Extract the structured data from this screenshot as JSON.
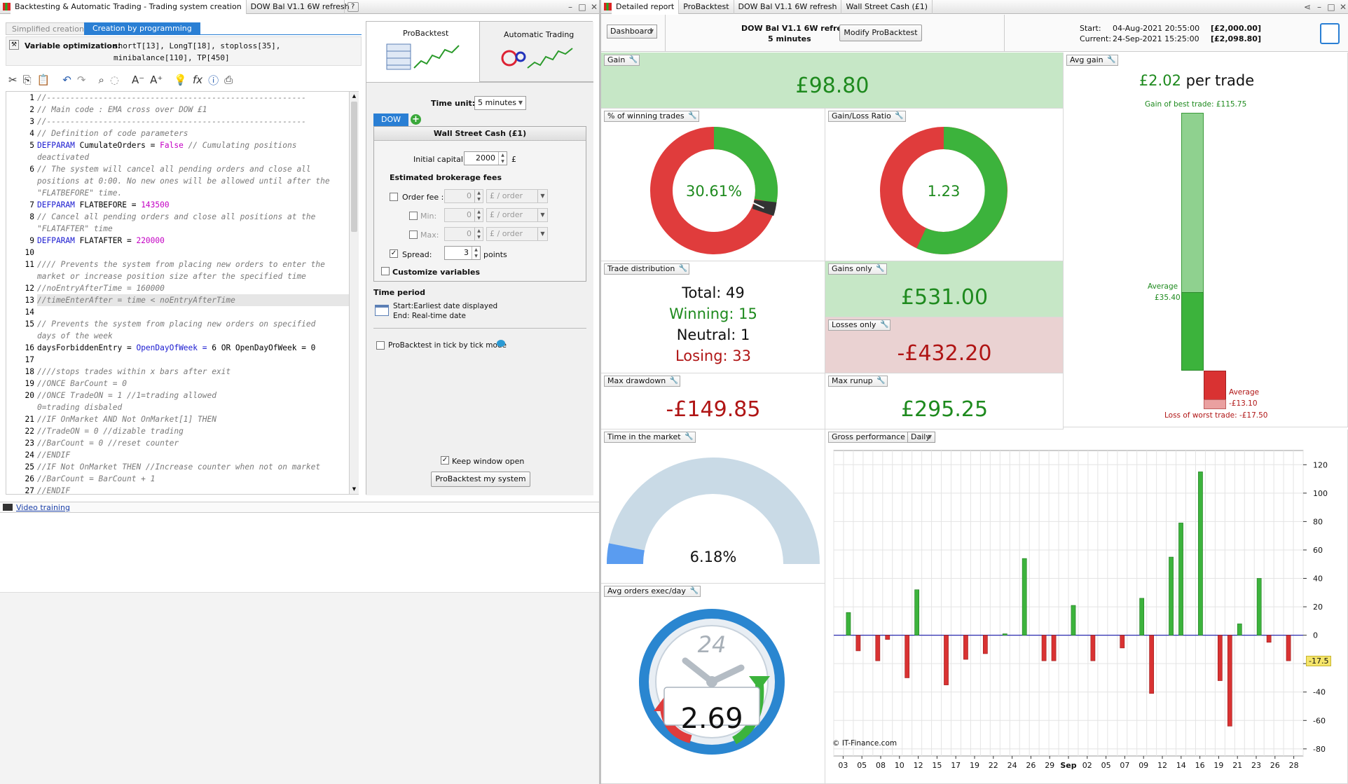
{
  "left_window": {
    "title": "Backtesting & Automatic Trading - Trading system creation",
    "tab2": "DOW Bal V1.1 6W refresh",
    "mode_tabs": [
      "Simplified creation",
      "Creation by programming"
    ],
    "variable_optimization_label": "Variable optimization:",
    "variable_optimization_line1": "shortT[13], LongT[18], stoploss[35],",
    "variable_optimization_line2": "minibalance[110], TP[450]",
    "video_training": "Video training"
  },
  "code_lines": [
    {
      "n": "1",
      "t": "//-------------------------------------------------------"
    },
    {
      "n": "2",
      "t": "// Main code : EMA cross over DOW £1"
    },
    {
      "n": "3",
      "t": "//-------------------------------------------------------"
    },
    {
      "n": "4",
      "t": "// Definition of code parameters"
    },
    {
      "n": "5",
      "a": "DEFPARAM ",
      "b": "CumulateOrders = ",
      "c": "False",
      "d": " // Cumulating positions"
    },
    {
      "n": "",
      "t": "deactivated"
    },
    {
      "n": "6",
      "t": "// The system will cancel all pending orders and close all"
    },
    {
      "n": "",
      "t": "positions at 0:00. No new ones will be allowed until after the"
    },
    {
      "n": "",
      "t": "\"FLATBEFORE\" time."
    },
    {
      "n": "7",
      "a": "DEFPARAM ",
      "b": "FLATBEFORE = ",
      "c": "143500",
      "d": ""
    },
    {
      "n": "8",
      "t": "// Cancel all pending orders and close all positions at the"
    },
    {
      "n": "",
      "t": "\"FLATAFTER\" time"
    },
    {
      "n": "9",
      "a": "DEFPARAM ",
      "b": "FLATAFTER = ",
      "c": "220000",
      "d": ""
    },
    {
      "n": "10",
      "t": ""
    },
    {
      "n": "11",
      "t": "//// Prevents the system from placing new orders to enter the"
    },
    {
      "n": "",
      "t": "market or increase position size after the specified time"
    },
    {
      "n": "12",
      "t": "//noEntryAfterTime = 160000"
    },
    {
      "n": "13",
      "t": "//timeEnterAfter = time < noEntryAfterTime"
    },
    {
      "n": "14",
      "t": ""
    },
    {
      "n": "15",
      "t": "// Prevents the system from placing new orders on specified"
    },
    {
      "n": "",
      "t": "days of the week"
    },
    {
      "n": "16",
      "a": "",
      "b": "daysForbiddenEntry = ",
      "c": "OpenDayOfWeek = ",
      "d": "6 OR OpenDayOfWeek = 0"
    },
    {
      "n": "17",
      "t": ""
    },
    {
      "n": "18",
      "t": "////stops trades within x bars after exit"
    },
    {
      "n": "19",
      "t": "//ONCE BarCount = 0"
    },
    {
      "n": "20",
      "t": "//ONCE TradeON  = 1           //1=trading allowed"
    },
    {
      "n": "",
      "t": "0=trading disbaled"
    },
    {
      "n": "21",
      "t": "//IF OnMarket AND Not OnMarket[1] THEN"
    },
    {
      "n": "22",
      "t": "//TradeON  = 0             //dizable trading"
    },
    {
      "n": "23",
      "t": "//BarCount = 0             //reset counter"
    },
    {
      "n": "24",
      "t": "//ENDIF"
    },
    {
      "n": "25",
      "t": "//IF Not OnMarket THEN    //Increase counter when not on market"
    },
    {
      "n": "26",
      "t": "//BarCount = BarCount + 1"
    },
    {
      "n": "27",
      "t": "//ENDIF"
    }
  ],
  "settings": {
    "tab_probacktest": "ProBacktest",
    "tab_auto": "Automatic Trading",
    "time_unit_label": "Time unit:",
    "time_unit_value": "5 minutes",
    "instrument_tab": "DOW",
    "instrument_name": "Wall Street Cash (£1)",
    "initial_capital_label": "Initial capital :",
    "initial_capital_value": "2000",
    "currency": "£",
    "fees_heading": "Estimated brokerage fees",
    "order_fee_label": "Order fee :",
    "min_label": "Min:",
    "max_label": "Max:",
    "zero": "0",
    "per_order": "£ / order",
    "spread_label": "Spread:",
    "spread_value": "3",
    "points": "points",
    "customize": "Customize variables",
    "time_period": "Time period",
    "start_label": "Start:Earliest date displayed",
    "end_label": "End:  Real-time date",
    "tick_mode": "ProBacktest in tick by tick mode",
    "keep_open": "Keep window open",
    "run_button": "ProBacktest my system"
  },
  "right_window": {
    "tabs": [
      "Detailed report",
      "ProBacktest",
      "DOW Bal V1.1 6W refresh",
      "Wall Street Cash (£1)"
    ],
    "dashboard": "Dashboard",
    "system_name": "DOW Bal V1.1 6W refresh",
    "timeframe": "5 minutes",
    "modify_button": "Modify ProBacktest",
    "start_label": "Start:",
    "start_value": "04-Aug-2021 20:55:00",
    "start_capital": "[£2,000.00]",
    "current_label": "Current:",
    "current_value": "24-Sep-2021 15:25:00",
    "current_capital": "[£2,098.80]"
  },
  "report": {
    "gain_title": "Gain",
    "gain_value": "£98.80",
    "avg_gain_title": "Avg gain",
    "avg_gain_value": "£2.02",
    "per_trade": "per trade",
    "best_trade_label": "Gain of best trade: £115.75",
    "avg_label": "Average",
    "avg_win": "£35.40",
    "avg_loss": "-£13.10",
    "worst_trade_label": "Loss of worst trade: -£17.50",
    "winning_pct_title": "% of winning trades",
    "winning_pct_value": "30.61%",
    "gl_ratio_title": "Gain/Loss Ratio",
    "gl_ratio_value": "1.23",
    "trade_dist_title": "Trade distribution",
    "total": "Total: 49",
    "winning": "Winning: 15",
    "neutral": "Neutral: 1",
    "losing": "Losing: 33",
    "gains_only_title": "Gains only",
    "gains_only_value": "£531.00",
    "losses_only_title": "Losses only",
    "losses_only_value": "-£432.20",
    "max_dd_title": "Max drawdown",
    "max_dd_value": "-£149.85",
    "max_runup_title": "Max runup",
    "max_runup_value": "£295.25",
    "time_market_title": "Time in the market",
    "time_market_value": "6.18%",
    "avg_orders_title": "Avg orders exec/day",
    "avg_orders_value": "2.69",
    "clock_label": "24",
    "gross_perf_title": "Gross performance",
    "period": "Daily",
    "copyright": "© IT-Finance.com",
    "current_marker": "-17.5"
  },
  "chart_data": {
    "type": "bar",
    "ylim": [
      -85,
      130
    ],
    "yticks": [
      120,
      100,
      80,
      60,
      40,
      20,
      0,
      -20,
      -40,
      -60,
      -80
    ],
    "xtick_labels": [
      "03",
      "05",
      "08",
      "10",
      "12",
      "15",
      "17",
      "19",
      "22",
      "24",
      "26",
      "29",
      "Sep",
      "02",
      "05",
      "07",
      "09",
      "12",
      "14",
      "16",
      "19",
      "21",
      "23",
      "26",
      "28"
    ],
    "values": [
      0,
      16,
      -11,
      0,
      -18,
      -3,
      0,
      -30,
      32,
      0,
      0,
      -35,
      0,
      -17,
      0,
      -13,
      0,
      1,
      0,
      54,
      0,
      -18,
      -18,
      0,
      21,
      0,
      -18,
      0,
      0,
      -9,
      0,
      26,
      -41,
      0,
      55,
      79,
      0,
      115,
      0,
      -32,
      -64,
      8,
      0,
      40,
      -5,
      0,
      -18,
      0
    ]
  }
}
